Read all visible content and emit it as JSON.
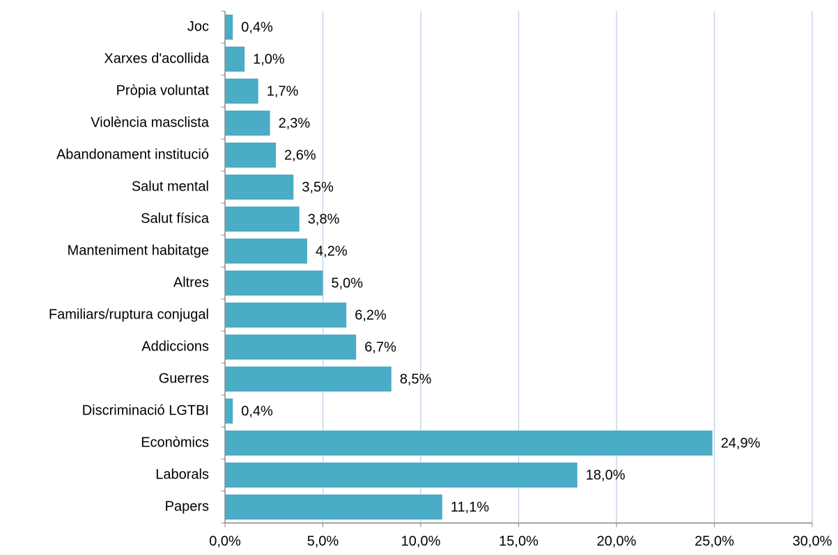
{
  "chart_data": {
    "type": "bar",
    "orientation": "horizontal",
    "categories": [
      "Joc",
      "Xarxes d'acollida",
      "Pròpia voluntat",
      "Violència masclista",
      "Abandonament institució",
      "Salut mental",
      "Salut física",
      "Manteniment habitatge",
      "Altres",
      "Familiars/ruptura conjugal",
      "Addiccions",
      "Guerres",
      "Discriminació LGTBI",
      "Econòmics",
      "Laborals",
      "Papers"
    ],
    "values": [
      0.4,
      1.0,
      1.7,
      2.3,
      2.6,
      3.5,
      3.8,
      4.2,
      5.0,
      6.2,
      6.7,
      8.5,
      0.4,
      24.9,
      18.0,
      11.1
    ],
    "value_labels": [
      "0,4%",
      "1,0%",
      "1,7%",
      "2,3%",
      "2,6%",
      "3,5%",
      "3,8%",
      "4,2%",
      "5,0%",
      "6,2%",
      "6,7%",
      "8,5%",
      "0,4%",
      "24,9%",
      "18,0%",
      "11,1%"
    ],
    "color": "#4bacc6",
    "xlim": [
      0,
      30
    ],
    "xticks": [
      {
        "value": 0,
        "label": "0,0%"
      },
      {
        "value": 5,
        "label": "5,0%"
      },
      {
        "value": 10,
        "label": "10,0%"
      },
      {
        "value": 15,
        "label": "15,0%"
      },
      {
        "value": 20,
        "label": "20,0%"
      },
      {
        "value": 25,
        "label": "25,0%"
      },
      {
        "value": 30,
        "label": "30,0%"
      }
    ],
    "grid": true
  }
}
